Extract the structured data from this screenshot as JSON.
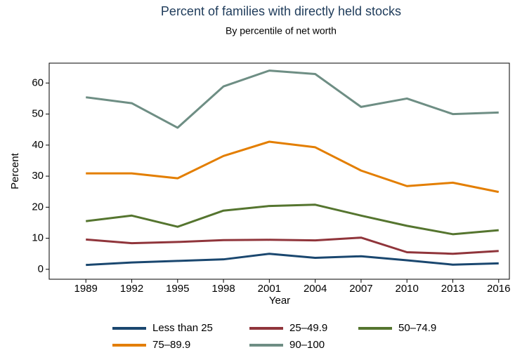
{
  "chart_data": {
    "type": "line",
    "title": "Percent of families with directly held stocks",
    "subtitle": "By percentile of net worth",
    "x_label": "Year",
    "y_label": "Percent",
    "x": [
      1989,
      1992,
      1995,
      1998,
      2001,
      2004,
      2007,
      2010,
      2013,
      2016
    ],
    "series": [
      {
        "name": "Less than 25",
        "color": "#1a476f",
        "values": [
          1.4,
          2.2,
          2.7,
          3.2,
          5.0,
          3.7,
          4.2,
          2.9,
          1.5,
          1.9
        ]
      },
      {
        "name": "25–49.9",
        "color": "#90353b",
        "values": [
          9.6,
          8.4,
          8.8,
          9.4,
          9.5,
          9.3,
          10.2,
          5.5,
          5.0,
          5.9
        ]
      },
      {
        "name": "50–74.9",
        "color": "#55752f",
        "values": [
          15.5,
          17.3,
          13.7,
          18.9,
          20.4,
          20.8,
          17.3,
          14.0,
          11.3,
          12.6
        ]
      },
      {
        "name": "75–89.9",
        "color": "#e37e00",
        "values": [
          30.9,
          30.9,
          29.3,
          36.5,
          41.1,
          39.3,
          31.8,
          26.8,
          27.9,
          24.9
        ]
      },
      {
        "name": "90–100",
        "color": "#6e8e84",
        "values": [
          55.4,
          53.5,
          45.6,
          58.9,
          64.0,
          62.9,
          52.3,
          55.0,
          50.0,
          50.5
        ]
      }
    ],
    "xlim": [
      1986.6,
      2016.7
    ],
    "xticks": [
      1989,
      1992,
      1995,
      1998,
      2001,
      2004,
      2007,
      2010,
      2013,
      2016
    ],
    "ylim": [
      -3.2,
      66.4
    ],
    "yticks": [
      0,
      10,
      20,
      30,
      40,
      50,
      60
    ],
    "grid": false,
    "legend": "bottom"
  }
}
